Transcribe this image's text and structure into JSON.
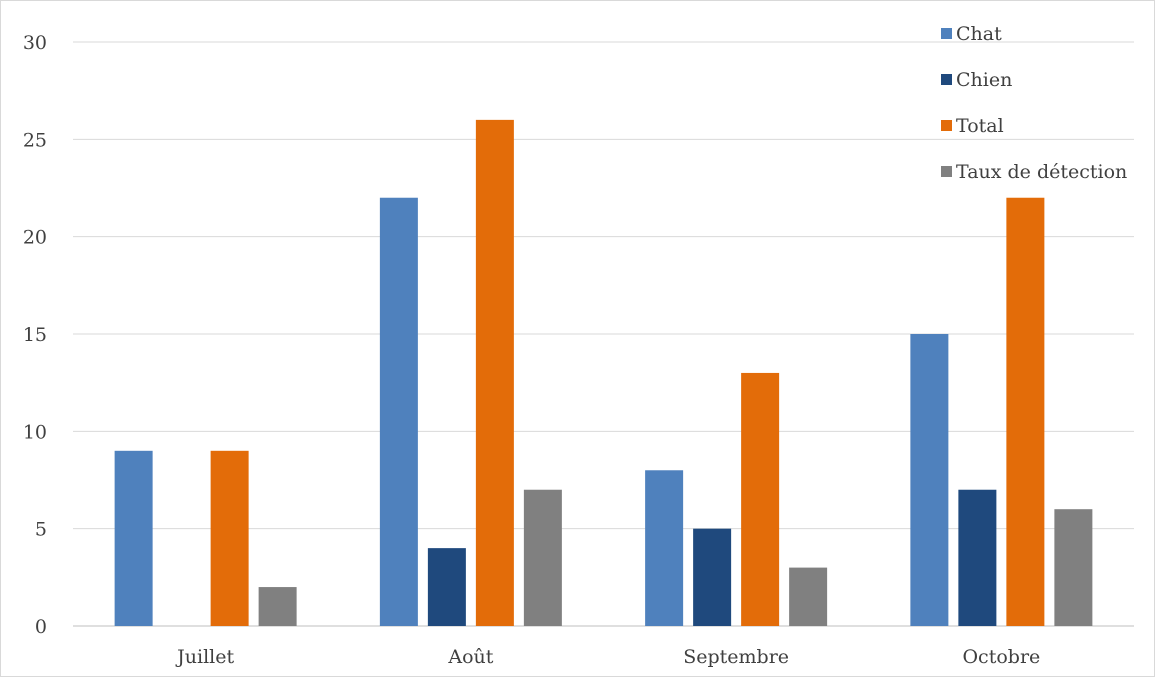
{
  "chart_data": {
    "type": "bar",
    "categories": [
      "Juillet",
      "Août",
      "Septembre",
      "Octobre"
    ],
    "series": [
      {
        "name": "Chat",
        "color": "#4f81bd",
        "values": [
          9,
          22,
          8,
          15
        ]
      },
      {
        "name": "Chien",
        "color": "#1f497d",
        "values": [
          0,
          4,
          5,
          7
        ]
      },
      {
        "name": "Total",
        "color": "#e36c09",
        "values": [
          9,
          26,
          13,
          22
        ]
      },
      {
        "name": "Taux de détection",
        "color": "#808080",
        "values": [
          2,
          7,
          3,
          6
        ]
      }
    ],
    "ylim": [
      0,
      30
    ],
    "yticks": [
      "0",
      "5",
      "10",
      "15",
      "20",
      "25",
      "30"
    ],
    "grid": true,
    "legend_position": "top-right",
    "title": "",
    "xlabel": "",
    "ylabel": ""
  }
}
